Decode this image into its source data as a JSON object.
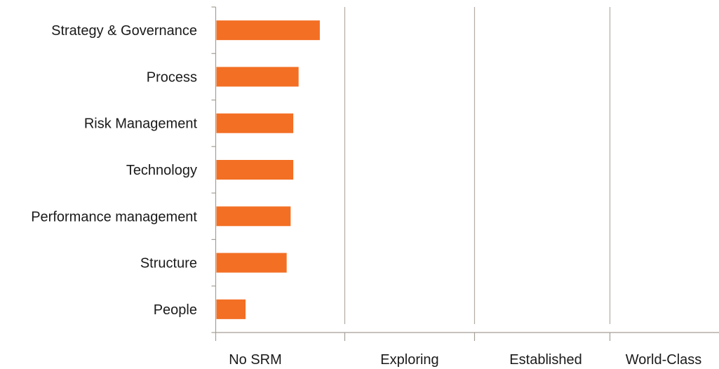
{
  "chart_data": {
    "type": "bar",
    "orientation": "horizontal",
    "title": "",
    "xlabel": "",
    "ylabel": "",
    "categories": [
      "Strategy & Governance",
      "Process",
      "Risk Management",
      "Technology",
      "Performance management",
      "Structure",
      "People"
    ],
    "values": [
      0.78,
      0.62,
      0.58,
      0.58,
      0.56,
      0.53,
      0.22
    ],
    "x_tick_labels": [
      "No SRM",
      "Exploring",
      "Established",
      "World-Class"
    ],
    "xlim": [
      0,
      3.9
    ],
    "grid": true,
    "legend": "none",
    "bar_color": "#f36f24",
    "grid_color": "#b4aca5",
    "axis_color": "#a69e96"
  }
}
